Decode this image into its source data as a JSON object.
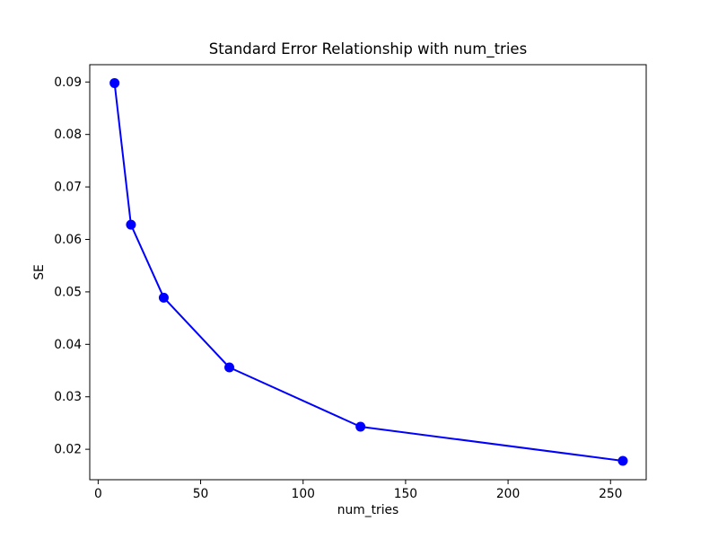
{
  "chart_data": {
    "type": "line",
    "title": "Standard Error Relationship with num_tries",
    "xlabel": "num_tries",
    "ylabel": "SE",
    "x": [
      8,
      16,
      32,
      64,
      128,
      256
    ],
    "y": [
      0.0898,
      0.0628,
      0.0489,
      0.0356,
      0.0243,
      0.0178
    ],
    "xlim": [
      -4.1,
      267.4
    ],
    "ylim": [
      0.0142,
      0.0933
    ],
    "xticks": [
      0,
      50,
      100,
      150,
      200,
      250
    ],
    "xtick_labels": [
      "0",
      "50",
      "100",
      "150",
      "200",
      "250"
    ],
    "yticks": [
      0.02,
      0.03,
      0.04,
      0.05,
      0.06,
      0.07,
      0.08,
      0.09
    ],
    "ytick_labels": [
      "0.02",
      "0.03",
      "0.04",
      "0.05",
      "0.06",
      "0.07",
      "0.08",
      "0.09"
    ],
    "grid": false,
    "legend": "none",
    "line_color": "#0000ff",
    "marker": "circle",
    "marker_color": "#0000ff",
    "spine_color": "#000000",
    "background_color": "#ffffff"
  }
}
